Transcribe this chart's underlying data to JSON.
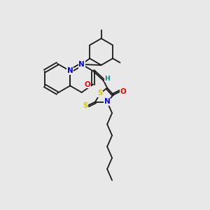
{
  "bg_color": "#e8e8e8",
  "figsize": [
    3.0,
    3.0
  ],
  "dpi": 100,
  "bond_color": "#1a1a1a",
  "bond_lw": 1.3,
  "atom_colors": {
    "N": "#0000ff",
    "O": "#ff0000",
    "S": "#cccc00",
    "H_label": "#009090",
    "C": "#1a1a1a"
  },
  "font_size_atom": 7.5,
  "font_size_small": 6.0
}
